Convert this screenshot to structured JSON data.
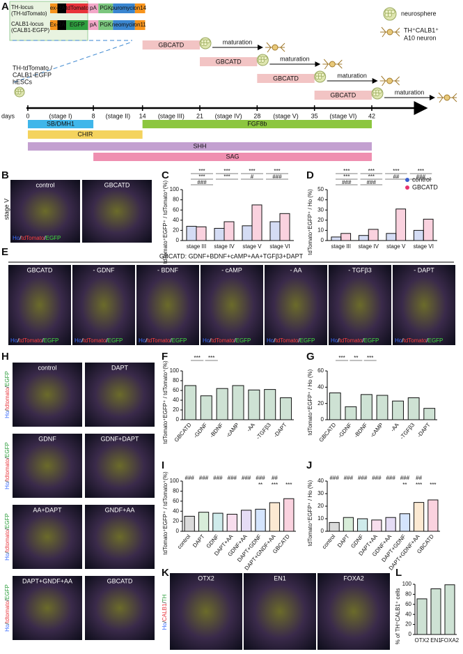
{
  "panel_labels": [
    "A",
    "B",
    "C",
    "D",
    "E",
    "F",
    "G",
    "H",
    "I",
    "J",
    "K",
    "L"
  ],
  "constructs": [
    {
      "title": [
        "TH-locus",
        "(TH-tdTomato)"
      ],
      "segments": [
        "ex-",
        "2A",
        "tdTomato",
        "pA",
        "PGK",
        "puromycin",
        "on14"
      ]
    },
    {
      "title": [
        "CALB1-locus",
        "(CALB1-EGFP)"
      ],
      "segments": [
        "Ex-",
        "2A",
        "EGFP",
        "pA",
        "PGK",
        "neomycin",
        "on11"
      ]
    }
  ],
  "key": {
    "neurosphere": "neurosphere",
    "neuron": [
      "TH⁺CALB1⁺",
      "A10 neuron"
    ]
  },
  "cell_line": [
    "TH-tdTomato /",
    "CALB1-EGFP",
    "hESCs"
  ],
  "protocol": [
    "GBCATD",
    "GBCATD",
    "GBCATD",
    "GBCATD"
  ],
  "maturation": [
    "maturation",
    "maturation",
    "maturation",
    "maturation"
  ],
  "timeline": {
    "days_label": "days",
    "days": [
      0,
      8,
      14,
      21,
      28,
      35,
      42
    ],
    "stages": [
      "(stage I)",
      "(stage II)",
      "(stage III)",
      "(stage IV)",
      "(stage V)",
      "(stage VI)"
    ]
  },
  "factors": [
    {
      "name": "SB/DMH1",
      "start": 0,
      "end": 8,
      "color": "#3fb6ea"
    },
    {
      "name": "CHIR",
      "start": 0,
      "end": 14,
      "color": "#f4d35e"
    },
    {
      "name": "FGF8b",
      "start": 14,
      "end": 42,
      "color": "#8cc63f"
    },
    {
      "name": "SHH",
      "start": 0,
      "end": 42,
      "color": "#c3a0d0"
    },
    {
      "name": "SAG",
      "start": 8,
      "end": 42,
      "color": "#ef8fb0"
    }
  ],
  "panel_b": {
    "side": "stage V",
    "titles": [
      "control",
      "GBCATD"
    ],
    "caption": [
      "Ho",
      "/",
      "tdTomato",
      "/",
      "EGFP"
    ]
  },
  "panel_e": {
    "definition": "GBCATD: GDNF+BDNF+cAMP+AA+TGFβ3+DAPT",
    "titles": [
      "GBCATD",
      "- GDNF",
      "- BDNF",
      "- cAMP",
      "- AA",
      "- TGFβ3",
      "- DAPT"
    ],
    "caption": [
      "Ho",
      "/",
      "tdTomato",
      "/",
      "EGFP"
    ]
  },
  "panel_h": {
    "titles": [
      "control",
      "DAPT",
      "GDNF",
      "GDNF+DAPT",
      "AA+DAPT",
      "GNDF+AA",
      "DAPT+GNDF+AA",
      "GBCATD"
    ],
    "caption": [
      "Ho",
      "/",
      "tdtomato",
      "/",
      "EGFP"
    ]
  },
  "panel_k": {
    "titles": [
      "OTX2",
      "EN1",
      "FOXA2"
    ],
    "caption": [
      "Ho",
      "/",
      "CALB1",
      "/",
      "TH"
    ]
  },
  "chart_data": [
    {
      "type": "bar",
      "ylabel": "tdTomato⁺EGFP⁺ / tdTomato⁺(%)",
      "categories": [
        "stage III",
        "stage IV",
        "stage V",
        "stage VI"
      ],
      "series": [
        {
          "color": "#3a5fcd",
          "values": [
            28,
            24,
            29,
            37
          ]
        },
        {
          "color": "#e8336f",
          "values": [
            27,
            37,
            70,
            53
          ]
        }
      ],
      "ylim": [
        0,
        100
      ],
      "yticks": [
        0,
        20,
        40,
        60,
        80,
        100
      ],
      "annotations": [
        "***",
        "***",
        "***",
        "***",
        "***",
        "***",
        "#",
        "###",
        "###"
      ]
    },
    {
      "type": "bar",
      "ylabel": "tdTomato⁺EGFP⁺ / Ho (%)",
      "categories": [
        "stage III",
        "stage IV",
        "stage V",
        "stage VI"
      ],
      "series": [
        {
          "name": "control",
          "color": "#3a5fcd",
          "values": [
            3.5,
            5,
            7,
            10
          ]
        },
        {
          "name": "GBCATD",
          "color": "#e8336f",
          "values": [
            7,
            11,
            31,
            21
          ]
        }
      ],
      "ylim": [
        0,
        50
      ],
      "yticks": [
        0,
        10,
        20,
        30,
        40,
        50
      ],
      "annotations": [
        "***",
        "***",
        "***",
        "***",
        "***",
        "***",
        "##",
        "###",
        "###",
        "###"
      ]
    },
    {
      "type": "bar",
      "ylabel": "tdTomato⁺EGFP⁺ / tdTomato⁺(%)",
      "categories": [
        "GBCATD",
        "-GDNF",
        "-BDNF",
        "-cAMP",
        "-AA",
        "-TGFβ3",
        "-DAPT"
      ],
      "series": [
        {
          "color": "#1f7a3a",
          "values": [
            70,
            49,
            64,
            70,
            61,
            62,
            45
          ]
        }
      ],
      "ylim": [
        0,
        100
      ],
      "yticks": [
        0,
        20,
        40,
        60,
        80,
        100
      ],
      "annotations": [
        "***",
        "***"
      ]
    },
    {
      "type": "bar",
      "ylabel": "tdTomato⁺EGFP⁺ / Ho (%)",
      "categories": [
        "GBCATD",
        "-GDNF",
        "-BDNF",
        "-cAMP",
        "-AA",
        "-TGFβ3",
        "-DAPT"
      ],
      "series": [
        {
          "color": "#1f7a3a",
          "values": [
            33,
            16,
            31,
            30,
            23,
            27,
            14
          ]
        }
      ],
      "ylim": [
        0,
        60
      ],
      "yticks": [
        0,
        20,
        40,
        60
      ],
      "annotations": [
        "***",
        "**",
        "***"
      ]
    },
    {
      "type": "bar",
      "ylabel": "tdTomato⁺EGFP⁺ / tdTomato⁺(%)",
      "categories": [
        "control",
        "DAPT",
        "GDNF",
        "DAPT+AA",
        "GDNF+AA",
        "DAPT+GDNF",
        "DAPT+GNDF+AA",
        "GBCATD"
      ],
      "colors": [
        "#555555",
        "#4caf50",
        "#26a6a6",
        "#e06ab0",
        "#8a5fd0",
        "#3b82f6",
        "#f39c32",
        "#e8336f"
      ],
      "series": [
        {
          "values": [
            30,
            38,
            36,
            34,
            42,
            44,
            57,
            65
          ]
        }
      ],
      "ylim": [
        0,
        100
      ],
      "yticks": [
        0,
        20,
        40,
        60,
        80,
        100
      ],
      "top_labels": [
        "###",
        "###",
        "###",
        "###",
        "###",
        "###",
        "##",
        null
      ],
      "star_labels": [
        null,
        null,
        null,
        null,
        null,
        "**",
        "***",
        "***"
      ]
    },
    {
      "type": "bar",
      "ylabel": "tdTomato⁺EGFP⁺ / Ho (%)",
      "categories": [
        "control",
        "DAPT",
        "GDNF",
        "DAPT+AA",
        "GDNF+AA",
        "DAPT+GDNF",
        "DAPT+GDNF+AA",
        "GBCATD"
      ],
      "colors": [
        "#555555",
        "#4caf50",
        "#26a6a6",
        "#e06ab0",
        "#8a5fd0",
        "#3b82f6",
        "#f39c32",
        "#e8336f"
      ],
      "series": [
        {
          "values": [
            7,
            11,
            10,
            9,
            11,
            14,
            23,
            25
          ]
        }
      ],
      "ylim": [
        0,
        40
      ],
      "yticks": [
        0,
        10,
        20,
        30,
        40
      ],
      "top_labels": [
        "###",
        "###",
        "###",
        "###",
        "###",
        "###",
        "##",
        null
      ],
      "star_labels": [
        null,
        null,
        null,
        null,
        null,
        "**",
        "***",
        "***"
      ]
    },
    {
      "type": "bar",
      "ylabel": "% of TH⁺CALB1⁺ cells",
      "categories": [
        "OTX2",
        "EN1",
        "FOXA2"
      ],
      "series": [
        {
          "color": "#1f7a3a",
          "values": [
            71,
            91,
            99
          ]
        }
      ],
      "ylim": [
        0,
        100
      ],
      "yticks": [
        0,
        20,
        40,
        60,
        80,
        100
      ]
    }
  ]
}
